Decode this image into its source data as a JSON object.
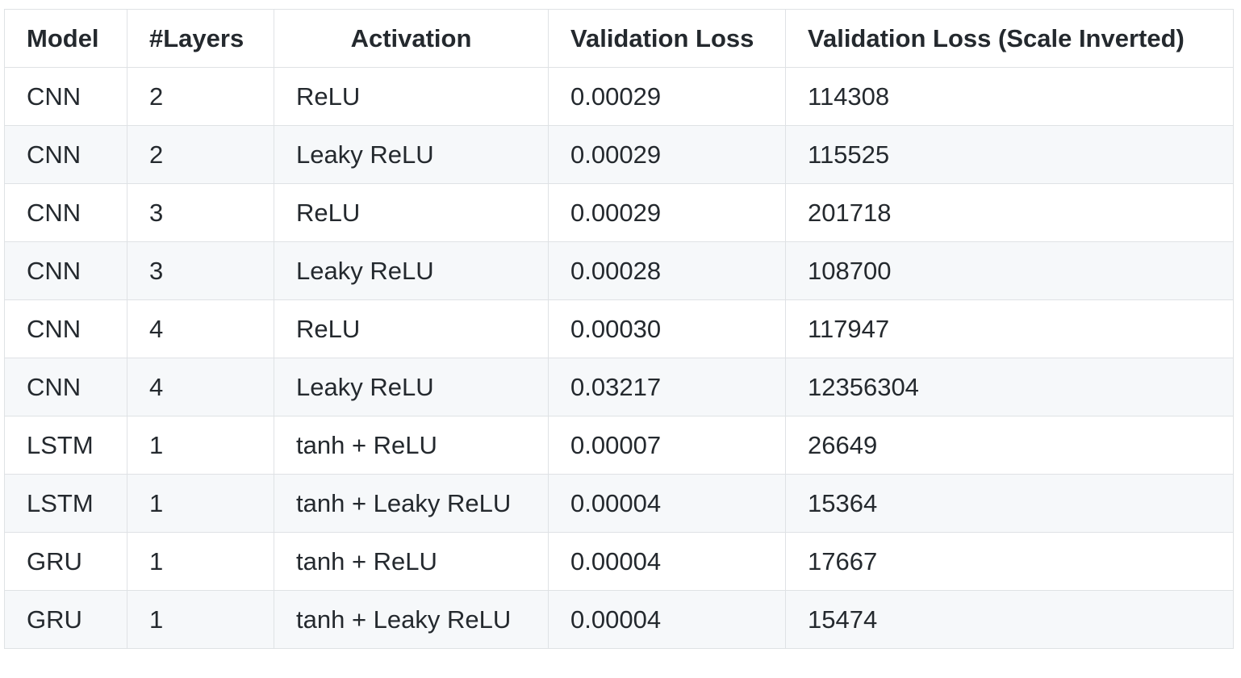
{
  "table": {
    "headers": [
      "Model",
      "#Layers",
      "Activation",
      "Validation Loss",
      "Validation Loss (Scale Inverted)"
    ],
    "rows": [
      [
        "CNN",
        "2",
        "ReLU",
        "0.00029",
        "114308"
      ],
      [
        "CNN",
        "2",
        "Leaky ReLU",
        "0.00029",
        "115525"
      ],
      [
        "CNN",
        "3",
        "ReLU",
        "0.00029",
        "201718"
      ],
      [
        "CNN",
        "3",
        "Leaky ReLU",
        "0.00028",
        "108700"
      ],
      [
        "CNN",
        "4",
        "ReLU",
        "0.00030",
        "117947"
      ],
      [
        "CNN",
        "4",
        "Leaky ReLU",
        "0.03217",
        "12356304"
      ],
      [
        "LSTM",
        "1",
        "tanh + ReLU",
        "0.00007",
        "26649"
      ],
      [
        "LSTM",
        "1",
        "tanh + Leaky ReLU",
        "0.00004",
        "15364"
      ],
      [
        "GRU",
        "1",
        "tanh + ReLU",
        "0.00004",
        "17667"
      ],
      [
        "GRU",
        "1",
        "tanh + Leaky ReLU",
        "0.00004",
        "15474"
      ]
    ]
  },
  "colors": {
    "border": "#dfe2e5",
    "stripe": "#f6f8fa",
    "text": "#24292e"
  }
}
